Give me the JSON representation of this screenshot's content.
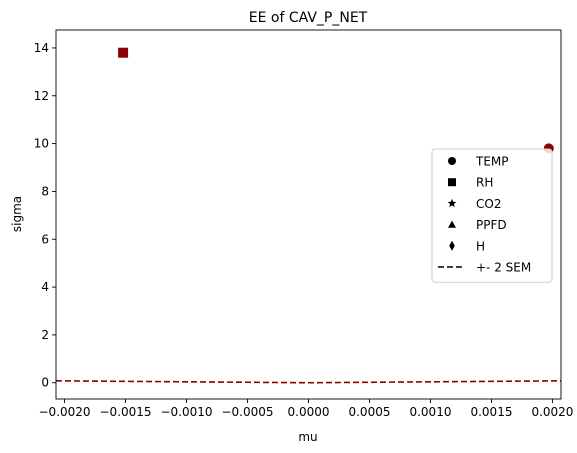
{
  "chart_data": {
    "type": "scatter",
    "title": "EE of CAV_P_NET",
    "xlabel": "mu",
    "ylabel": "sigma",
    "xlim": [
      -0.00207,
      0.00207
    ],
    "ylim": [
      -0.68,
      14.75
    ],
    "xticks": [
      -0.002,
      -0.0015,
      -0.001,
      -0.0005,
      0.0,
      0.0005,
      0.001,
      0.0015,
      0.002
    ],
    "xtick_labels": [
      "−0.0020",
      "−0.0015",
      "−0.0010",
      "−0.0005",
      "0.0000",
      "0.0005",
      "0.0010",
      "0.0015",
      "0.0020"
    ],
    "yticks": [
      0,
      2,
      4,
      6,
      8,
      10,
      12,
      14
    ],
    "ytick_labels": [
      "0",
      "2",
      "4",
      "6",
      "8",
      "10",
      "12",
      "14"
    ],
    "grid": false,
    "legend_position": "center-right",
    "point_color": "#8b0000",
    "points": [
      {
        "name": "TEMP",
        "marker": "circle",
        "x": 0.00197,
        "y": 9.8
      },
      {
        "name": "RH",
        "marker": "square",
        "x": -0.00152,
        "y": 13.8
      }
    ],
    "sem_line": {
      "name": "+- 2 SEM",
      "color": "#8b0000",
      "x": [
        -0.00207,
        0.0,
        0.00207
      ],
      "y": [
        0.08,
        0.0,
        0.08
      ]
    },
    "legend": [
      {
        "label": "TEMP",
        "marker": "circle"
      },
      {
        "label": "RH",
        "marker": "square"
      },
      {
        "label": "CO2",
        "marker": "star"
      },
      {
        "label": "PPFD",
        "marker": "triangle"
      },
      {
        "label": "H",
        "marker": "diamond"
      },
      {
        "label": "+- 2 SEM",
        "marker": "dashed-line"
      }
    ]
  }
}
